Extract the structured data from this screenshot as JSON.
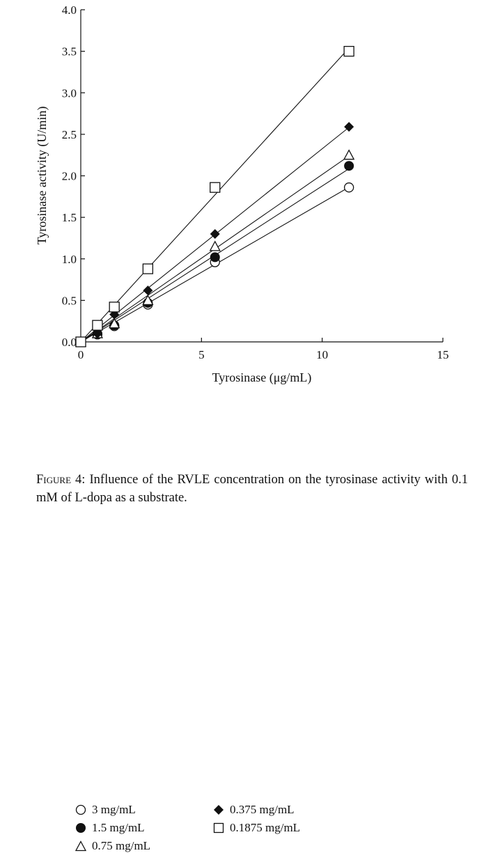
{
  "chart_data": {
    "type": "scatter",
    "xlabel": "Tyrosinase (μg/mL)",
    "ylabel": "Tyrosinase activity (U/min)",
    "xlim": [
      0,
      15
    ],
    "ylim": [
      0,
      4.0
    ],
    "x_ticks": [
      "0",
      "5",
      "10",
      "15"
    ],
    "y_ticks": [
      "0.0",
      "0.5",
      "1.0",
      "1.5",
      "2.0",
      "2.5",
      "3.0",
      "3.5",
      "4.0"
    ],
    "grid": false,
    "legend_position": "bottom",
    "x": [
      0,
      0.69,
      1.39,
      2.78,
      5.56,
      11.11
    ],
    "series": [
      {
        "name": "3 mg/mL",
        "marker": "open-circle",
        "values": [
          0,
          0.09,
          0.19,
          0.45,
          0.96,
          1.86
        ]
      },
      {
        "name": "1.5 mg/mL",
        "marker": "filled-circle",
        "values": [
          0,
          0.1,
          0.2,
          0.47,
          1.02,
          2.12
        ]
      },
      {
        "name": "0.75 mg/mL",
        "marker": "open-triangle",
        "values": [
          0,
          0.1,
          0.22,
          0.5,
          1.15,
          2.25
        ]
      },
      {
        "name": "0.375 mg/mL",
        "marker": "filled-diamond",
        "values": [
          0,
          0.1,
          0.33,
          0.62,
          1.3,
          2.59
        ]
      },
      {
        "name": "0.1875 mg/mL",
        "marker": "open-square",
        "values": [
          0,
          0.2,
          0.42,
          0.88,
          1.86,
          3.5
        ]
      }
    ]
  },
  "caption": {
    "label": "Figure 4:",
    "text": "Influence of the RVLE concentration on the tyrosinase activity with 0.1 mM of L-dopa as a substrate."
  }
}
